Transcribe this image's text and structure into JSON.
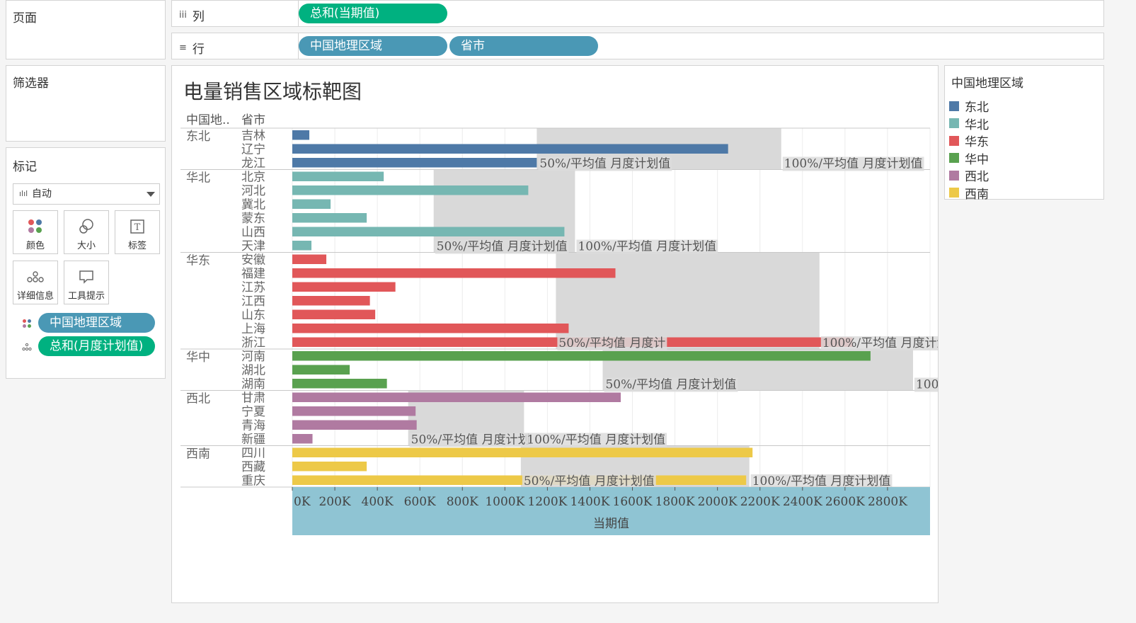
{
  "sidebar": {
    "pages_title": "页面",
    "filters_title": "筛选器",
    "marks_title": "标记",
    "marks_type": "自动",
    "buttons": [
      {
        "label": "颜色",
        "icon": "color-dots-icon"
      },
      {
        "label": "大小",
        "icon": "size-circles-icon"
      },
      {
        "label": "标签",
        "icon": "label-t-icon"
      },
      {
        "label": "详细信息",
        "icon": "detail-dots-icon"
      },
      {
        "label": "工具提示",
        "icon": "tooltip-bubble-icon"
      }
    ],
    "mark_fields": [
      {
        "label": "中国地理区域",
        "color": "#4a98b5"
      },
      {
        "label": "总和(月度计划值)",
        "color": "#00b180"
      }
    ]
  },
  "shelves": {
    "columns_label": "列",
    "columns_pill": "总和(当期值)",
    "rows_label": "行",
    "rows_pills": [
      "中国地理区域",
      "省市"
    ]
  },
  "legend": {
    "title": "中国地理区域",
    "items": [
      {
        "label": "东北",
        "color": "#4e79a7"
      },
      {
        "label": "华北",
        "color": "#76b7b2"
      },
      {
        "label": "华东",
        "color": "#e15759"
      },
      {
        "label": "华中",
        "color": "#59a14f"
      },
      {
        "label": "西北",
        "color": "#b07aa1"
      },
      {
        "label": "西南",
        "color": "#edc948"
      }
    ]
  },
  "chart_data": {
    "type": "bar",
    "title": "电量销售区域标靶图",
    "header_region": "中国地..",
    "header_province": "省市",
    "xlabel": "当期值",
    "xlim": [
      0,
      3000000
    ],
    "x_ticks": [
      "0K",
      "200K",
      "400K",
      "600K",
      "800K",
      "1000K",
      "1200K",
      "1400K",
      "1600K",
      "1800K",
      "2000K",
      "2200K",
      "2400K",
      "2600K",
      "2800K"
    ],
    "band_label_50": "50%/平均值 月度计划值",
    "band_label_50_truncated": "50%/平均值 月度计",
    "band_label_50_cut": "50%/平均值 月度计划",
    "band_label_100": "100%/平均值 月度计划值",
    "groups": [
      {
        "region": "东北",
        "color": "#4e79a7",
        "band": [
          1150000,
          2300000
        ],
        "provinces": [
          {
            "name": "吉林",
            "value": 80000
          },
          {
            "name": "辽宁",
            "value": 2050000
          },
          {
            "name": "龙江",
            "value": 1150000
          }
        ]
      },
      {
        "region": "华北",
        "color": "#76b7b2",
        "band": [
          665000,
          1330000
        ],
        "provinces": [
          {
            "name": "北京",
            "value": 430000
          },
          {
            "name": "河北",
            "value": 1110000
          },
          {
            "name": "冀北",
            "value": 180000
          },
          {
            "name": "蒙东",
            "value": 350000
          },
          {
            "name": "山西",
            "value": 1280000
          },
          {
            "name": "天津",
            "value": 90000
          }
        ]
      },
      {
        "region": "华东",
        "color": "#e15759",
        "band": [
          1240000,
          2480000
        ],
        "provinces": [
          {
            "name": "安徽",
            "value": 160000
          },
          {
            "name": "福建",
            "value": 1520000
          },
          {
            "name": "江苏",
            "value": 485000
          },
          {
            "name": "江西",
            "value": 365000
          },
          {
            "name": "山东",
            "value": 390000
          },
          {
            "name": "上海",
            "value": 1300000
          },
          {
            "name": "浙江",
            "value": 2635000
          }
        ]
      },
      {
        "region": "华中",
        "color": "#59a14f",
        "band": [
          1460000,
          2920000
        ],
        "provinces": [
          {
            "name": "河南",
            "value": 2720000
          },
          {
            "name": "湖北",
            "value": 270000
          },
          {
            "name": "湖南",
            "value": 445000
          }
        ]
      },
      {
        "region": "西北",
        "color": "#b07aa1",
        "band": [
          545000,
          1090000
        ],
        "provinces": [
          {
            "name": "甘肃",
            "value": 1545000
          },
          {
            "name": "宁夏",
            "value": 580000
          },
          {
            "name": "青海",
            "value": 585000
          },
          {
            "name": "新疆",
            "value": 95000
          }
        ]
      },
      {
        "region": "西南",
        "color": "#edc948",
        "band": [
          1075000,
          2150000
        ],
        "provinces": [
          {
            "name": "四川",
            "value": 2165000
          },
          {
            "name": "西藏",
            "value": 350000
          },
          {
            "name": "重庆",
            "value": 2135000
          }
        ]
      }
    ]
  }
}
